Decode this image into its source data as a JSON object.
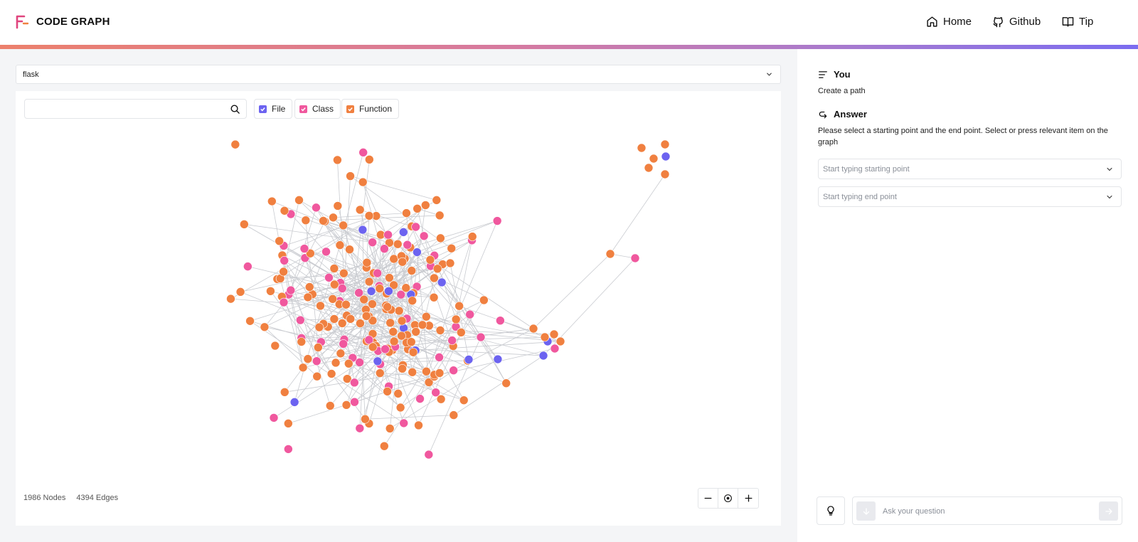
{
  "header": {
    "brand": "CODE GRAPH",
    "nav": [
      {
        "label": "Home",
        "icon": "home-icon"
      },
      {
        "label": "Github",
        "icon": "github-icon"
      },
      {
        "label": "Tip",
        "icon": "book-icon"
      }
    ]
  },
  "repo_select": {
    "value": "flask"
  },
  "graph": {
    "search_placeholder": "",
    "filters": [
      {
        "label": "File",
        "checked": true,
        "color": "#6c63f0"
      },
      {
        "label": "Class",
        "checked": true,
        "color": "#f0589e"
      },
      {
        "label": "Function",
        "checked": true,
        "color": "#f08040"
      }
    ],
    "nodes_count": "1986 Nodes",
    "edges_count": "4394 Edges",
    "colors": {
      "file": "#6c63f0",
      "class": "#f0589e",
      "function": "#f08040",
      "edge": "#c9cbd0"
    }
  },
  "chat": {
    "you_title": "You",
    "you_text": "Create a path",
    "answer_title": "Answer",
    "answer_text": "Please select a starting point and the end point. Select or press relevant item on the graph",
    "start_placeholder": "Start typing starting point",
    "end_placeholder": "Start typing end point",
    "ask_placeholder": "Ask your question"
  }
}
